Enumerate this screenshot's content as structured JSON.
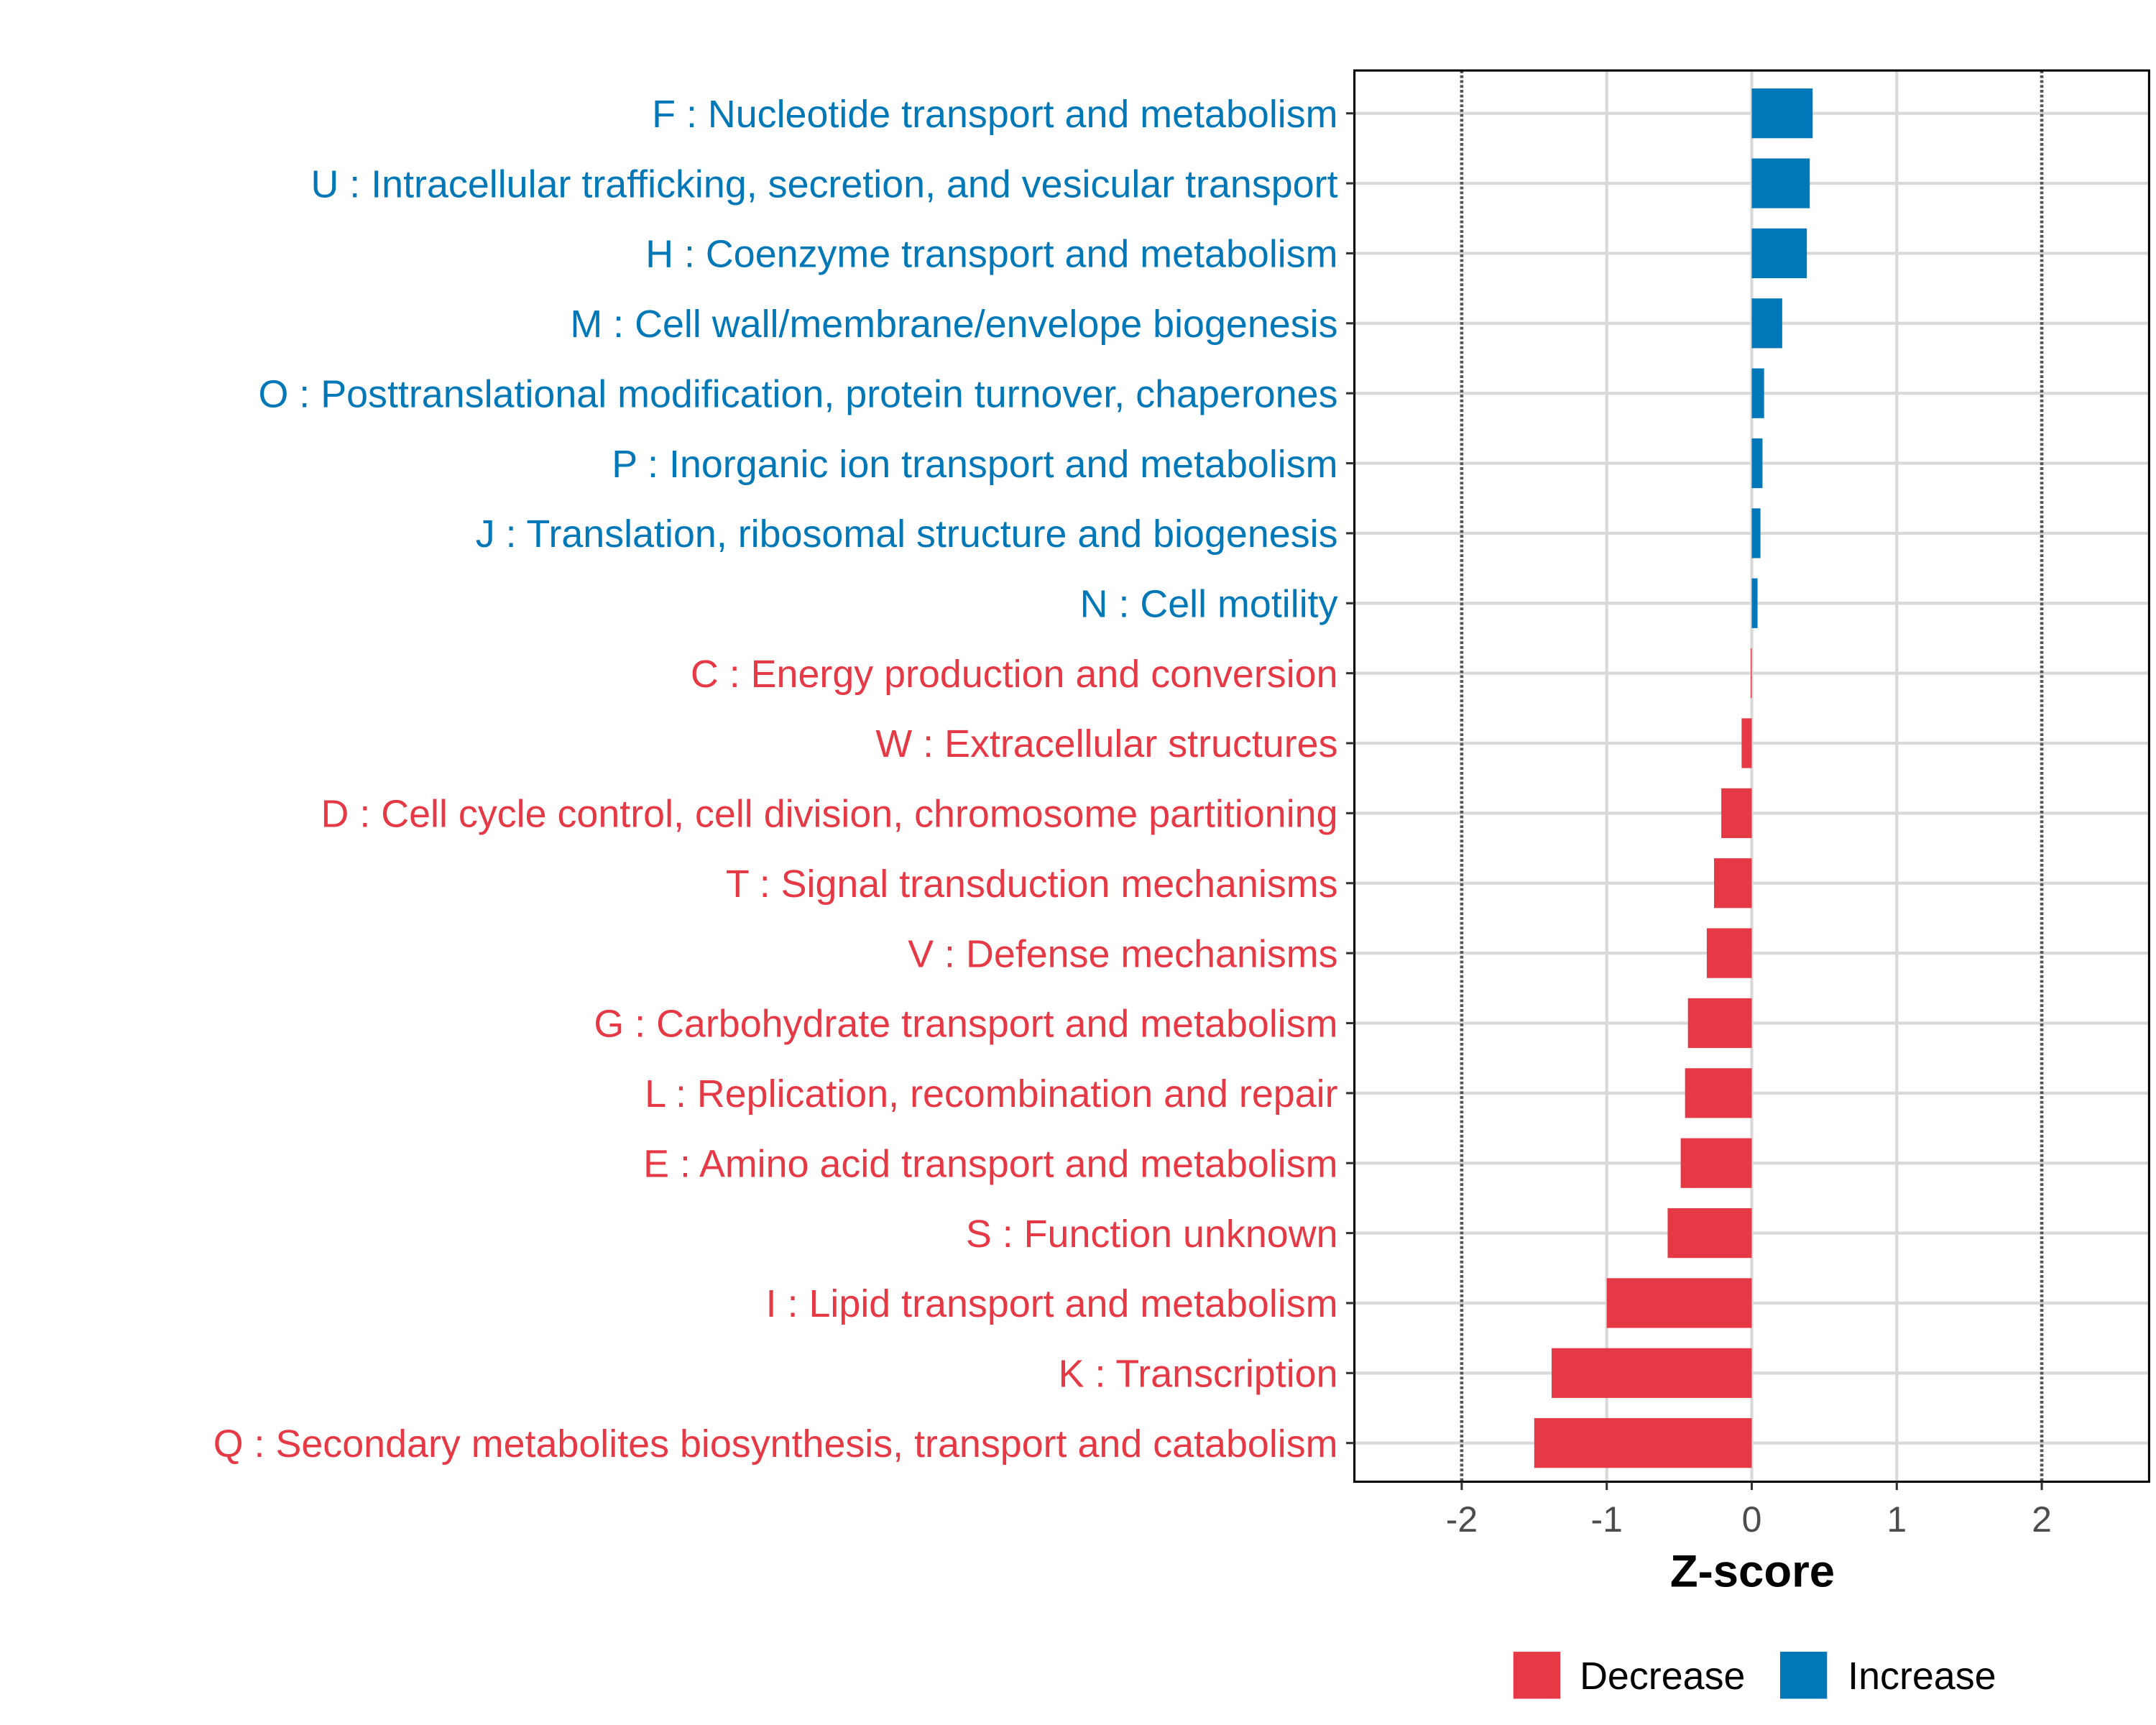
{
  "chart_data": {
    "type": "bar",
    "orientation": "horizontal",
    "title": "",
    "xlabel": "Z-score",
    "ylabel": "",
    "xlim": [
      -2.74,
      2.74
    ],
    "xticks": [
      -2,
      -1,
      0,
      1,
      2
    ],
    "xtick_labels": [
      "-2",
      "-1",
      "0",
      "1",
      "2"
    ],
    "reference_lines": [
      -2,
      2
    ],
    "grid": true,
    "colors": {
      "Decrease": "#E63946",
      "Increase": "#0077B6"
    },
    "legend": {
      "placement": "bottom",
      "entries": [
        "Decrease",
        "Increase"
      ]
    },
    "categories": [
      "F : Nucleotide transport and metabolism",
      "U : Intracellular trafficking, secretion, and vesicular transport",
      "H : Coenzyme transport and metabolism",
      "M : Cell wall/membrane/envelope biogenesis",
      "O : Posttranslational modification, protein turnover, chaperones",
      "P : Inorganic ion transport and metabolism",
      "J : Translation, ribosomal structure and biogenesis",
      "N : Cell motility",
      "C : Energy production and conversion",
      "W : Extracellular structures",
      "D : Cell cycle control, cell division, chromosome partitioning",
      "T : Signal transduction mechanisms",
      "V : Defense mechanisms",
      "G : Carbohydrate transport and metabolism",
      "L : Replication, recombination and repair",
      "E : Amino acid transport and metabolism",
      "S : Function unknown",
      "I : Lipid transport and metabolism",
      "K : Transcription",
      "Q : Secondary metabolites biosynthesis, transport and catabolism"
    ],
    "values": [
      0.42,
      0.4,
      0.38,
      0.21,
      0.085,
      0.074,
      0.06,
      0.04,
      -0.007,
      -0.07,
      -0.21,
      -0.26,
      -0.31,
      -0.44,
      -0.46,
      -0.49,
      -0.58,
      -1.0,
      -1.38,
      -1.5
    ],
    "groups": [
      "Increase",
      "Increase",
      "Increase",
      "Increase",
      "Increase",
      "Increase",
      "Increase",
      "Increase",
      "Decrease",
      "Decrease",
      "Decrease",
      "Decrease",
      "Decrease",
      "Decrease",
      "Decrease",
      "Decrease",
      "Decrease",
      "Decrease",
      "Decrease",
      "Decrease"
    ]
  }
}
